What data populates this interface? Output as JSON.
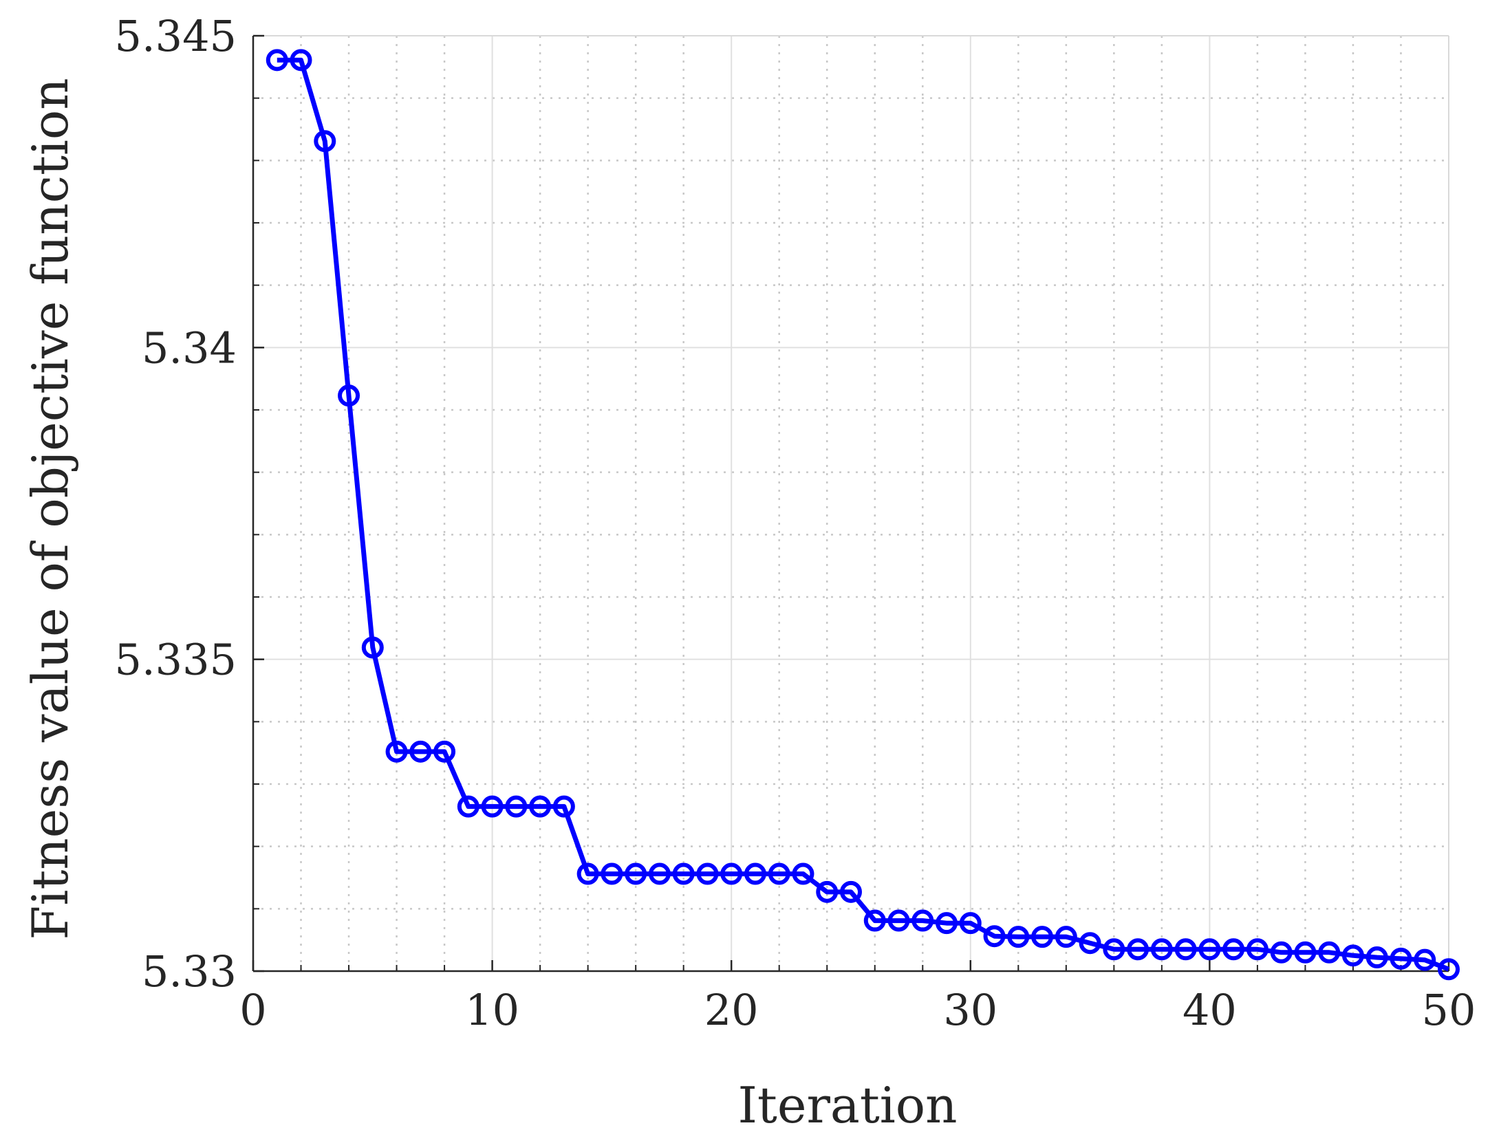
{
  "chart_data": {
    "type": "line",
    "xlabel": "Iteration",
    "ylabel": "Fitness value of objective function",
    "xlim": [
      0,
      50
    ],
    "ylim": [
      5.33,
      5.345
    ],
    "xticks": [
      0,
      10,
      20,
      30,
      40,
      50
    ],
    "xtick_labels": [
      "0",
      "10",
      "20",
      "30",
      "40",
      "50"
    ],
    "yticks": [
      5.33,
      5.335,
      5.34,
      5.345
    ],
    "ytick_labels": [
      "5.33",
      "5.335",
      "5.34",
      "5.345"
    ],
    "grid": true,
    "minor_grid": true,
    "series": [
      {
        "color": "#0000ff",
        "marker": "circle",
        "x": [
          1,
          2,
          3,
          4,
          5,
          6,
          7,
          8,
          9,
          10,
          11,
          12,
          13,
          14,
          15,
          16,
          17,
          18,
          19,
          20,
          21,
          22,
          23,
          24,
          25,
          26,
          27,
          28,
          29,
          30,
          31,
          32,
          33,
          34,
          35,
          36,
          37,
          38,
          39,
          40,
          41,
          42,
          43,
          44,
          45,
          46,
          47,
          48,
          49,
          50
        ],
        "values": [
          5.34461,
          5.34461,
          5.34331,
          5.33923,
          5.33519,
          5.33352,
          5.33352,
          5.33352,
          5.33264,
          5.33264,
          5.33264,
          5.33264,
          5.33264,
          5.33156,
          5.33156,
          5.33156,
          5.33156,
          5.33156,
          5.33156,
          5.33156,
          5.33156,
          5.33156,
          5.33156,
          5.33127,
          5.33127,
          5.33081,
          5.33081,
          5.33081,
          5.33077,
          5.33077,
          5.33056,
          5.33055,
          5.33055,
          5.33055,
          5.33045,
          5.33035,
          5.33035,
          5.33035,
          5.33035,
          5.33035,
          5.33035,
          5.33035,
          5.3303,
          5.3303,
          5.3303,
          5.33025,
          5.33022,
          5.3302,
          5.33018,
          5.33003
        ]
      }
    ]
  }
}
